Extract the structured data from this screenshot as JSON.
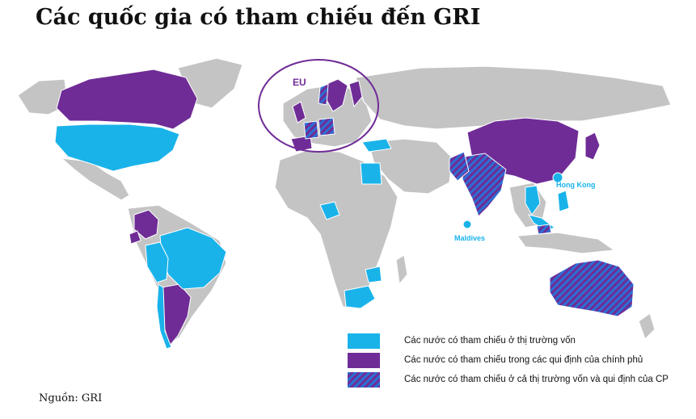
{
  "title": "Các quốc gia có tham chiếu đến GRI",
  "map": {
    "labels": {
      "eu": "EU",
      "hong_kong": "Hong Kong",
      "maldives": "Maldives"
    },
    "colors": {
      "ocean": "#ffffff",
      "land": "#c4c4c4",
      "capital_markets": "#19b3ea",
      "government": "#6f2c96",
      "both_stripe_a": "#2b6fd3",
      "both_stripe_b": "#6f2c96"
    }
  },
  "legend": {
    "capital_markets": "Các nước có tham chiếu ở thị trường vốn",
    "government": "Các nước có tham chiếu trong các qui định của chính phủ",
    "both": "Các nước có tham chiếu ở cả thị trường vốn và qui định của CP"
  },
  "source": "Nguồn: GRI"
}
